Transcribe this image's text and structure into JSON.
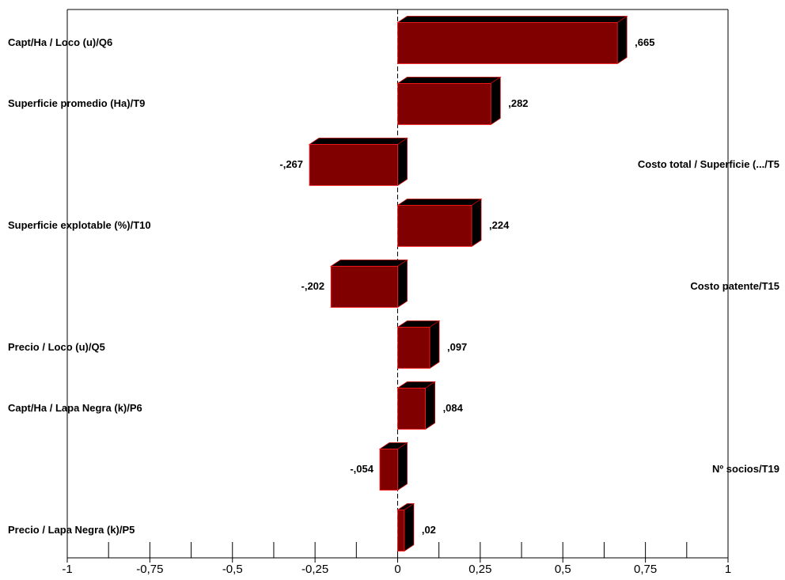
{
  "chart_data": {
    "type": "bar",
    "orientation": "horizontal",
    "categories": [
      "Capt/Ha / Loco (u)/Q6",
      "Superficie promedio (Ha)/T9",
      "Costo total / Superficie (.../T5",
      "Superficie explotable (%)/T10",
      "Costo patente/T15",
      "Precio / Loco (u)/Q5",
      "Capt/Ha / Lapa Negra (k)/P6",
      "Nº socios/T19",
      "Precio / Lapa Negra (k)/P5"
    ],
    "values": [
      0.665,
      0.282,
      -0.267,
      0.224,
      -0.202,
      0.097,
      0.084,
      -0.054,
      0.02
    ],
    "value_labels": [
      ",665",
      ",282",
      "-,267",
      ",224",
      "-,202",
      ",097",
      ",084",
      "-,054",
      ",02"
    ],
    "color": "#800000",
    "xlim": [
      -1,
      1
    ],
    "xticks": [
      -1,
      {
        "value": -0.75,
        "label": "-0,75"
      },
      {
        "value": -0.5,
        "label": "-0,5"
      },
      {
        "value": -0.25,
        "label": "-0,25"
      },
      0,
      {
        "value": 0.25,
        "label": "0,25"
      },
      {
        "value": 0.5,
        "label": "0,5"
      },
      {
        "value": 0.75,
        "label": "0,75"
      },
      1
    ]
  }
}
